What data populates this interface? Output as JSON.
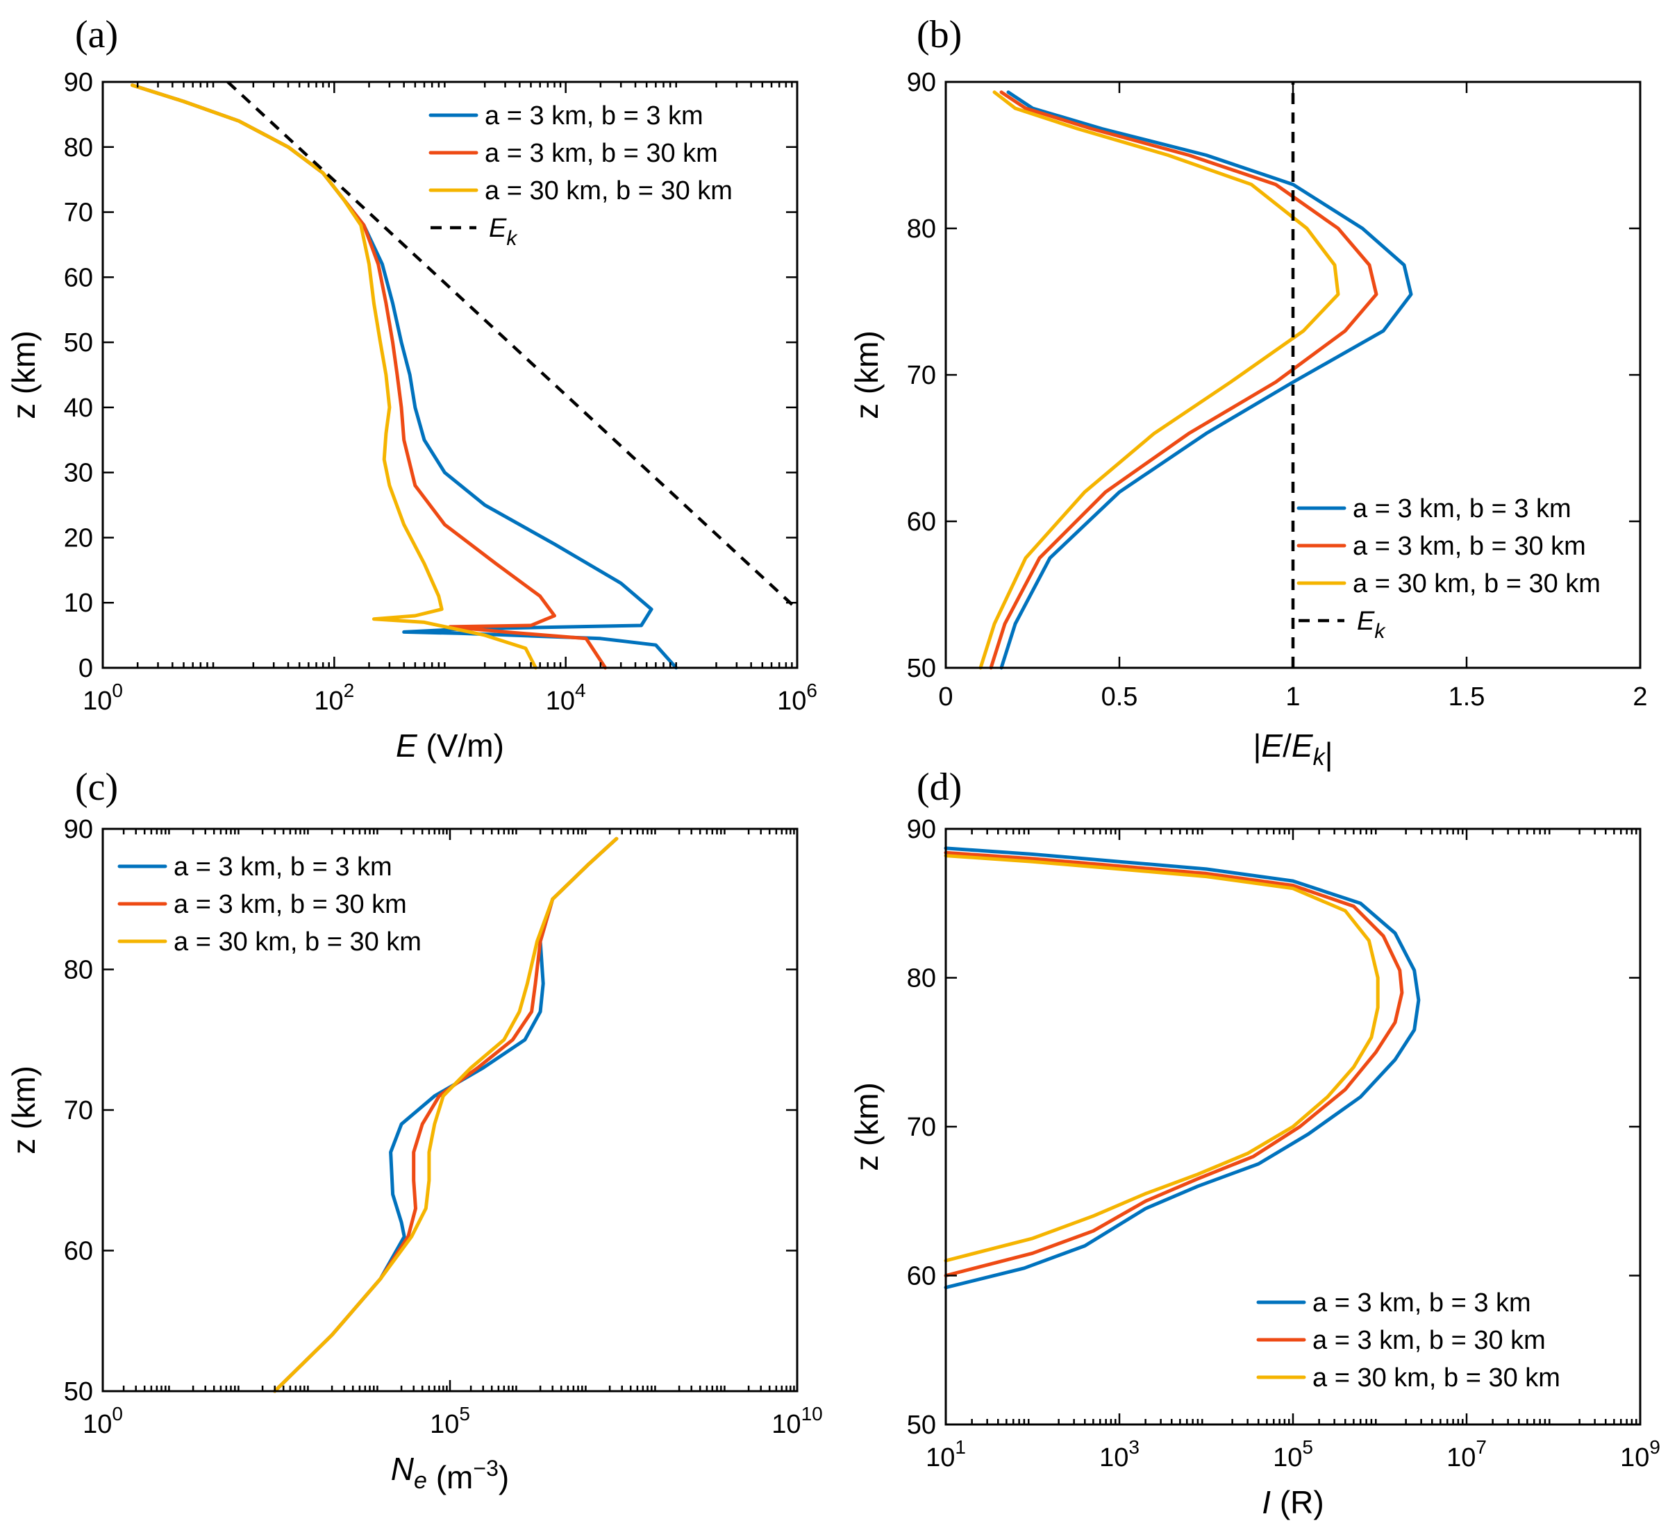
{
  "colors": {
    "blue": "#0072BD",
    "red": "#EE4A14",
    "yellow": "#F5B400",
    "black": "#000000"
  },
  "chart_data": [
    {
      "panel": "(a)",
      "type": "line",
      "xscale": "log",
      "xlim": [
        1,
        1000000
      ],
      "ylim": [
        0,
        90
      ],
      "xticks": [
        1,
        100,
        10000,
        1000000
      ],
      "xtick_labels": [
        [
          "10",
          "0"
        ],
        [
          "10",
          "2"
        ],
        [
          "10",
          "4"
        ],
        [
          "10",
          "6"
        ]
      ],
      "yticks": [
        0,
        10,
        20,
        30,
        40,
        50,
        60,
        70,
        80,
        90
      ],
      "ytick_labels": [
        "0",
        "10",
        "20",
        "30",
        "40",
        "50",
        "60",
        "70",
        "80",
        "90"
      ],
      "xlabel": {
        "italic": "E",
        "rest": " (V/m)"
      },
      "ylabel": "z (km)",
      "legend_position": "top-right",
      "series": [
        {
          "name": "a = 3 km, b = 3 km",
          "color": "blue",
          "x": [
            1.8,
            5,
            15,
            40,
            80,
            120,
            180,
            260,
            320,
            380,
            450,
            500,
            600,
            900,
            2000,
            8000,
            30000,
            55000,
            45000,
            1500,
            400,
            1200,
            20000,
            60000,
            90000
          ],
          "y": [
            89.5,
            87,
            84,
            80,
            76,
            72,
            68,
            62,
            56,
            50,
            45,
            40,
            35,
            30,
            25,
            19,
            13,
            9,
            6.5,
            6,
            5.5,
            5.3,
            4.5,
            3.5,
            0
          ]
        },
        {
          "name": "a = 3 km, b = 30 km",
          "color": "red",
          "x": [
            1.8,
            5,
            15,
            40,
            80,
            120,
            180,
            240,
            280,
            320,
            350,
            380,
            400,
            500,
            900,
            2500,
            6000,
            8000,
            5000,
            1000,
            3000,
            15000,
            22000
          ],
          "y": [
            89.5,
            87,
            84,
            80,
            76,
            72,
            68,
            62,
            56,
            50,
            45,
            40,
            35,
            28,
            22,
            16,
            11,
            8,
            6.5,
            6.3,
            5.5,
            4.5,
            0
          ]
        },
        {
          "name": "a = 30 km, b = 30 km",
          "color": "yellow",
          "x": [
            1.8,
            5,
            15,
            40,
            80,
            120,
            170,
            200,
            220,
            250,
            280,
            300,
            280,
            270,
            300,
            400,
            600,
            800,
            850,
            500,
            220,
            600,
            2000,
            4500,
            5500
          ],
          "y": [
            89.5,
            87,
            84,
            80,
            76,
            72,
            68,
            62,
            56,
            50,
            45,
            40,
            36,
            32,
            28,
            22,
            16,
            11,
            9,
            8,
            7.5,
            7,
            5,
            3,
            0
          ]
        },
        {
          "name": "E_k",
          "label_italic": "E",
          "label_sub": "k",
          "color": "black",
          "dashed": true,
          "x": [
            12,
            1000000
          ],
          "y": [
            90,
            9
          ]
        }
      ]
    },
    {
      "panel": "(b)",
      "type": "line",
      "xscale": "linear",
      "xlim": [
        0,
        2
      ],
      "ylim": [
        50,
        90
      ],
      "xticks": [
        0,
        0.5,
        1,
        1.5,
        2
      ],
      "xtick_labels": [
        "0",
        "0.5",
        "1",
        "1.5",
        "2"
      ],
      "yticks": [
        50,
        60,
        70,
        80,
        90
      ],
      "ytick_labels": [
        "50",
        "60",
        "70",
        "80",
        "90"
      ],
      "xlabel": {
        "prefix": "|",
        "italic": "E",
        "mid": "/",
        "italic2": "E",
        "sub": "k",
        "suffix": "|"
      },
      "ylabel": "z (km)",
      "legend_position": "bottom-right",
      "series": [
        {
          "name": "a = 3 km, b = 3 km",
          "color": "blue",
          "x": [
            0.18,
            0.25,
            0.45,
            0.75,
            1.0,
            1.2,
            1.32,
            1.34,
            1.26,
            1.0,
            0.75,
            0.5,
            0.3,
            0.2,
            0.16
          ],
          "y": [
            89.3,
            88.2,
            86.8,
            85.0,
            83.0,
            80.0,
            77.5,
            75.5,
            73.0,
            69.5,
            66.0,
            62.0,
            57.5,
            53.0,
            50.0
          ]
        },
        {
          "name": "a = 3 km, b = 30 km",
          "color": "red",
          "x": [
            0.16,
            0.23,
            0.42,
            0.7,
            0.95,
            1.13,
            1.22,
            1.24,
            1.15,
            0.95,
            0.7,
            0.46,
            0.27,
            0.17,
            0.13
          ],
          "y": [
            89.3,
            88.2,
            86.8,
            85.0,
            83.0,
            80.0,
            77.5,
            75.5,
            73.0,
            69.5,
            66.0,
            62.0,
            57.5,
            53.0,
            50.0
          ]
        },
        {
          "name": "a = 30 km, b = 30 km",
          "color": "yellow",
          "x": [
            0.14,
            0.2,
            0.38,
            0.64,
            0.88,
            1.04,
            1.12,
            1.13,
            1.03,
            0.82,
            0.6,
            0.4,
            0.23,
            0.14,
            0.1
          ],
          "y": [
            89.3,
            88.2,
            86.8,
            85.0,
            83.0,
            80.0,
            77.5,
            75.5,
            73.0,
            69.5,
            66.0,
            62.0,
            57.5,
            53.0,
            50.0
          ]
        },
        {
          "name": "E_k",
          "label_italic": "E",
          "label_sub": "k",
          "color": "black",
          "dashed": true,
          "x": [
            1,
            1
          ],
          "y": [
            50,
            90
          ]
        }
      ]
    },
    {
      "panel": "(c)",
      "type": "line",
      "xscale": "log",
      "xlim": [
        1,
        10000000000
      ],
      "ylim": [
        50,
        90
      ],
      "xticks": [
        1,
        100000,
        10000000000
      ],
      "xtick_labels": [
        [
          "10",
          "0"
        ],
        [
          "10",
          "5"
        ],
        [
          "10",
          "10"
        ]
      ],
      "yticks": [
        50,
        60,
        70,
        80,
        90
      ],
      "ytick_labels": [
        "50",
        "60",
        "70",
        "80",
        "90"
      ],
      "xlabel": {
        "italic": "N",
        "sub": "e",
        "rest": " (m",
        "sup": "−3",
        "end": ")"
      },
      "ylabel": "z (km)",
      "legend_position": "top-left",
      "series": [
        {
          "name": "a = 3 km, b = 3 km",
          "color": "blue",
          "x": [
            300,
            2000,
            10000,
            22000,
            20000,
            15000,
            14000,
            20000,
            60000,
            300000,
            1200000,
            2000000,
            2200000,
            2000000,
            3000000,
            10000000,
            25000000
          ],
          "y": [
            50,
            54,
            58,
            61,
            62,
            64,
            67,
            69,
            71,
            73,
            75,
            77,
            79,
            82,
            85,
            87.5,
            89.3
          ]
        },
        {
          "name": "a = 3 km, b = 30 km",
          "color": "red",
          "x": [
            300,
            2000,
            10000,
            25000,
            32000,
            30000,
            30000,
            40000,
            70000,
            250000,
            800000,
            1500000,
            1700000,
            2000000,
            3000000,
            10000000,
            25000000
          ],
          "y": [
            50,
            54,
            58,
            61,
            63,
            65,
            67,
            69,
            71,
            73,
            75,
            77,
            79,
            82,
            85,
            87.5,
            89.3
          ]
        },
        {
          "name": "a = 30 km, b = 30 km",
          "color": "yellow",
          "x": [
            300,
            2000,
            10000,
            28000,
            45000,
            50000,
            50000,
            60000,
            80000,
            200000,
            600000,
            1000000,
            1300000,
            1800000,
            3000000,
            10000000,
            25000000
          ],
          "y": [
            50,
            54,
            58,
            61,
            63,
            65,
            67,
            69,
            71,
            73,
            75,
            77,
            79,
            82,
            85,
            87.5,
            89.3
          ]
        }
      ]
    },
    {
      "panel": "(d)",
      "type": "line",
      "xscale": "log",
      "xlim": [
        10,
        1000000000
      ],
      "ylim": [
        50,
        90
      ],
      "xticks": [
        10,
        1000,
        100000,
        10000000,
        1000000000
      ],
      "xtick_labels": [
        [
          "10",
          "1"
        ],
        [
          "10",
          "3"
        ],
        [
          "10",
          "5"
        ],
        [
          "10",
          "7"
        ],
        [
          "10",
          "9"
        ]
      ],
      "yticks": [
        50,
        60,
        70,
        80,
        90
      ],
      "ytick_labels": [
        "50",
        "60",
        "70",
        "80",
        "90"
      ],
      "xlabel": {
        "italic": "I",
        "rest": " (R)"
      },
      "ylabel": "z (km)",
      "legend_position": "bottom-right",
      "series": [
        {
          "name": "a = 3 km, b = 3 km",
          "color": "blue",
          "x": [
            10,
            100,
            1000,
            10000,
            100000,
            600000,
            1500000,
            2500000,
            2800000,
            2500000,
            1500000,
            600000,
            150000,
            40000,
            8000,
            2000,
            400,
            80,
            10
          ],
          "y": [
            88.7,
            88.3,
            87.8,
            87.3,
            86.5,
            85.0,
            83.0,
            80.5,
            78.5,
            76.5,
            74.5,
            72.0,
            69.5,
            67.5,
            66.0,
            64.5,
            62.0,
            60.5,
            59.2
          ]
        },
        {
          "name": "a = 3 km, b = 30 km",
          "color": "red",
          "x": [
            10,
            100,
            1000,
            10000,
            100000,
            500000,
            1100000,
            1700000,
            1800000,
            1500000,
            900000,
            400000,
            120000,
            35000,
            8000,
            2000,
            500,
            100,
            10
          ],
          "y": [
            88.4,
            88.0,
            87.5,
            87.0,
            86.2,
            84.8,
            82.8,
            80.5,
            79.0,
            77.0,
            75.0,
            72.5,
            70.0,
            68.0,
            66.5,
            65.0,
            63.0,
            61.5,
            60.0
          ]
        },
        {
          "name": "a = 30 km, b = 30 km",
          "color": "yellow",
          "x": [
            10,
            100,
            1000,
            10000,
            100000,
            400000,
            750000,
            950000,
            950000,
            800000,
            500000,
            250000,
            100000,
            30000,
            8000,
            2000,
            500,
            100,
            10
          ],
          "y": [
            88.2,
            87.8,
            87.3,
            86.8,
            86.0,
            84.5,
            82.5,
            80.0,
            78.0,
            76.0,
            74.0,
            72.0,
            70.0,
            68.2,
            66.8,
            65.5,
            64.0,
            62.5,
            61.0
          ]
        }
      ]
    }
  ]
}
